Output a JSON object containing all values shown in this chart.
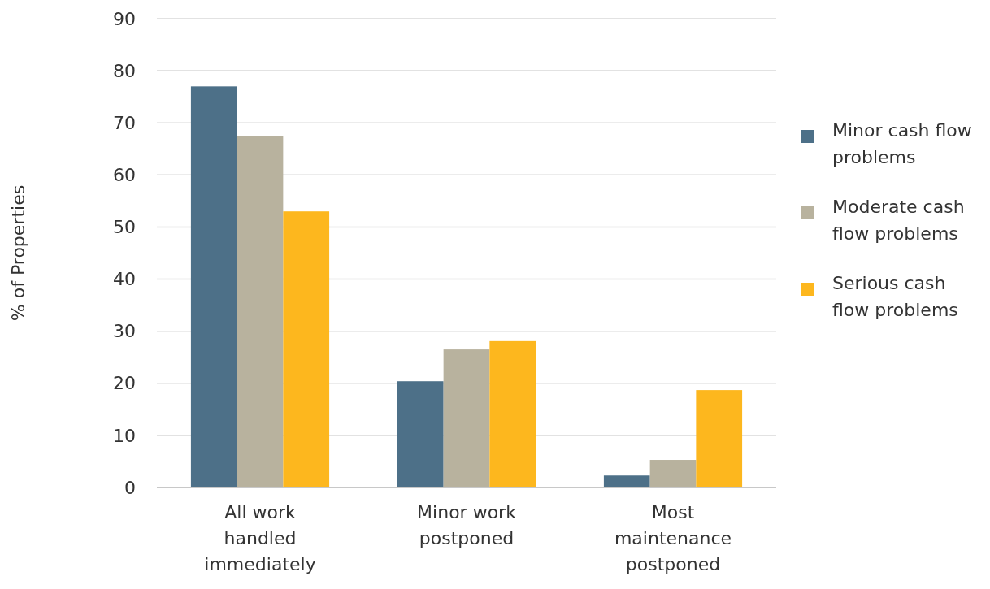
{
  "chart_data": {
    "type": "bar",
    "ylabel": "% of Properties",
    "categories": [
      "All work handled immediately",
      "Minor work postponed",
      "Most maintenance postponed"
    ],
    "series": [
      {
        "name": "Minor cash flow problems",
        "color": "#4d7088",
        "values": [
          77,
          20.4,
          2.3
        ]
      },
      {
        "name": "Moderate cash flow problems",
        "color": "#b8b29e",
        "values": [
          67.5,
          26.5,
          5.3
        ]
      },
      {
        "name": "Serious cash flow problems",
        "color": "#fdb71e",
        "values": [
          53,
          28.1,
          18.7
        ]
      }
    ],
    "ylim": [
      0,
      90
    ],
    "yticks": [
      0,
      10,
      20,
      30,
      40,
      50,
      60,
      70,
      80,
      90
    ],
    "grid": "y",
    "legend": "right"
  }
}
